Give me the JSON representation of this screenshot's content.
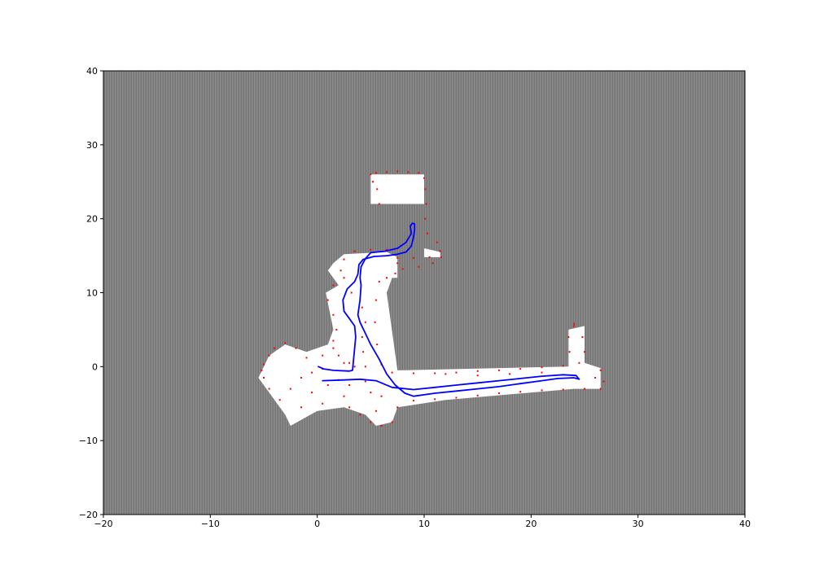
{
  "chart_data": {
    "type": "scatter",
    "title": "",
    "xlabel": "",
    "ylabel": "",
    "xlim": [
      -20,
      40
    ],
    "ylim": [
      -20,
      40
    ],
    "x_ticks": [
      -20,
      -10,
      0,
      10,
      20,
      30,
      40
    ],
    "y_ticks": [
      -20,
      -10,
      0,
      10,
      20,
      30,
      40
    ],
    "x_tick_labels": [
      "−20",
      "−10",
      "0",
      "10",
      "20",
      "30",
      "40"
    ],
    "y_tick_labels": [
      "−20",
      "−10",
      "0",
      "10",
      "20",
      "30",
      "40"
    ],
    "grid": false,
    "legend": "none",
    "colors": {
      "unknown": "#808080",
      "free": "#ffffff",
      "occupied": "#ff0000",
      "trajectory": "#0000ff"
    },
    "free_space_regions": [
      [
        [
          5.0,
          26.0
        ],
        [
          10.0,
          26.0
        ],
        [
          10.0,
          16.0
        ],
        [
          11.5,
          15.5
        ],
        [
          11.5,
          14.8
        ],
        [
          7.5,
          14.8
        ],
        [
          6.5,
          15.5
        ],
        [
          2.5,
          15.2
        ],
        [
          1.5,
          14.0
        ],
        [
          1.0,
          13.0
        ],
        [
          2.0,
          11.0
        ],
        [
          0.8,
          10.0
        ],
        [
          1.5,
          5.0
        ],
        [
          1.0,
          3.0
        ],
        [
          -1.0,
          2.0
        ],
        [
          -3.0,
          3.0
        ],
        [
          -4.5,
          1.5
        ],
        [
          -5.0,
          0.0
        ],
        [
          -5.5,
          -1.5
        ],
        [
          -4.5,
          -3.5
        ],
        [
          -3.0,
          -6.5
        ],
        [
          -2.5,
          -8.0
        ],
        [
          0.0,
          -6.0
        ],
        [
          2.5,
          -5.5
        ],
        [
          4.5,
          -6.5
        ],
        [
          5.5,
          -8.0
        ],
        [
          7.0,
          -7.5
        ],
        [
          7.5,
          -5.5
        ],
        [
          12.0,
          -4.5
        ],
        [
          24.0,
          -3.0
        ],
        [
          26.5,
          -3.0
        ],
        [
          26.5,
          -0.2
        ],
        [
          25.0,
          0.5
        ],
        [
          25.0,
          5.5
        ],
        [
          23.5,
          5.0
        ],
        [
          23.5,
          0.0
        ],
        [
          7.5,
          -0.5
        ],
        [
          6.5,
          10.0
        ],
        [
          7.0,
          12.0
        ],
        [
          7.5,
          12.0
        ],
        [
          7.5,
          14.8
        ],
        [
          10.0,
          14.8
        ],
        [
          10.0,
          22.0
        ],
        [
          5.0,
          22.0
        ],
        [
          5.0,
          26.0
        ]
      ]
    ],
    "series": [
      {
        "points": [
          [
            5.0,
            26.0
          ],
          [
            5.5,
            26.2
          ],
          [
            6.5,
            26.3
          ],
          [
            7.5,
            26.4
          ],
          [
            8.5,
            26.3
          ],
          [
            9.5,
            26.2
          ],
          [
            10.0,
            25.5
          ],
          [
            10.1,
            24.0
          ],
          [
            10.2,
            22.0
          ],
          [
            10.1,
            20.0
          ],
          [
            10.3,
            18.0
          ],
          [
            11.2,
            16.8
          ],
          [
            11.5,
            15.6
          ],
          [
            11.6,
            14.8
          ],
          [
            10.5,
            14.8
          ],
          [
            9.0,
            14.7
          ],
          [
            7.5,
            14.7
          ],
          [
            7.5,
            14.0
          ],
          [
            7.3,
            12.6
          ],
          [
            6.5,
            12.0
          ],
          [
            5.8,
            11.5
          ],
          [
            5.5,
            9.0
          ],
          [
            5.4,
            6.0
          ],
          [
            5.6,
            3.0
          ],
          [
            6.0,
            0.3
          ],
          [
            7.0,
            -0.8
          ],
          [
            9.0,
            -0.9
          ],
          [
            11.0,
            -0.9
          ],
          [
            13.0,
            -0.8
          ],
          [
            15.0,
            -0.6
          ],
          [
            17.0,
            -0.5
          ],
          [
            19.0,
            -0.3
          ],
          [
            21.0,
            -0.1
          ],
          [
            23.0,
            0.1
          ],
          [
            24.5,
            0.5
          ],
          [
            25.0,
            2.0
          ],
          [
            24.8,
            4.0
          ],
          [
            24.0,
            5.8
          ],
          [
            26.5,
            -0.5
          ],
          [
            26.8,
            -2.0
          ],
          [
            26.5,
            -3.0
          ],
          [
            25.0,
            -3.0
          ],
          [
            23.0,
            -3.1
          ],
          [
            21.0,
            -3.2
          ],
          [
            19.0,
            -3.4
          ],
          [
            17.0,
            -3.6
          ],
          [
            15.0,
            -3.9
          ],
          [
            13.0,
            -4.2
          ],
          [
            11.0,
            -4.4
          ],
          [
            9.0,
            -4.6
          ],
          [
            7.5,
            -5.5
          ],
          [
            7.0,
            -7.5
          ],
          [
            6.0,
            -8.0
          ],
          [
            5.0,
            -7.5
          ],
          [
            4.0,
            -6.5
          ],
          [
            3.0,
            -5.5
          ],
          [
            2.5,
            -4.0
          ],
          [
            3.0,
            0.5
          ],
          [
            3.5,
            0.0
          ],
          [
            2.5,
            0.5
          ],
          [
            2.0,
            1.5
          ],
          [
            1.5,
            2.5
          ],
          [
            0.5,
            1.5
          ],
          [
            -1.0,
            1.2
          ],
          [
            -2.0,
            2.5
          ],
          [
            -3.0,
            3.2
          ],
          [
            -4.0,
            2.5
          ],
          [
            -4.5,
            1.5
          ],
          [
            -5.0,
            0.3
          ],
          [
            -5.2,
            -0.5
          ],
          [
            -5.0,
            -1.5
          ],
          [
            -4.5,
            -3.0
          ],
          [
            -3.5,
            -4.5
          ],
          [
            -1.5,
            -5.5
          ],
          [
            0.5,
            -5.0
          ],
          [
            1.5,
            3.5
          ],
          [
            1.8,
            5.0
          ],
          [
            1.5,
            7.0
          ],
          [
            1.0,
            9.0
          ],
          [
            1.5,
            11.0
          ],
          [
            2.2,
            13.0
          ],
          [
            2.5,
            14.5
          ],
          [
            3.5,
            15.6
          ],
          [
            5.0,
            15.8
          ],
          [
            6.5,
            15.8
          ],
          [
            2.5,
            12.0
          ],
          [
            3.2,
            10.0
          ],
          [
            4.2,
            8.0
          ],
          [
            4.5,
            6.0
          ],
          [
            4.2,
            4.0
          ],
          [
            4.3,
            2.0
          ],
          [
            4.5,
            0.0
          ],
          [
            4.5,
            -2.0
          ],
          [
            5.0,
            -3.5
          ],
          [
            6.0,
            -4.0
          ],
          [
            5.8,
            22.0
          ],
          [
            5.6,
            24.0
          ],
          [
            5.2,
            25.0
          ],
          [
            0.5,
            -0.3
          ],
          [
            -0.5,
            -0.8
          ],
          [
            -1.5,
            -1.5
          ],
          [
            -2.5,
            -3.0
          ],
          [
            -0.5,
            -3.5
          ],
          [
            1.0,
            -2.5
          ],
          [
            2.0,
            -1.8
          ],
          [
            3.0,
            -2.5
          ],
          [
            5.5,
            -6.0
          ],
          [
            24.0,
            5.5
          ],
          [
            23.5,
            4.0
          ],
          [
            23.6,
            2.0
          ],
          [
            26.0,
            -1.5
          ],
          [
            12.0,
            -1.0
          ],
          [
            15.0,
            -1.2
          ],
          [
            18.0,
            -1.0
          ],
          [
            21.0,
            -0.8
          ],
          [
            8.0,
            13.2
          ],
          [
            9.5,
            13.5
          ],
          [
            10.8,
            14.0
          ]
        ]
      },
      {
        "points": [
          [
            0.1,
            0.0
          ],
          [
            0.6,
            -0.3
          ],
          [
            1.5,
            -0.5
          ],
          [
            3.0,
            -0.6
          ],
          [
            3.3,
            -0.5
          ],
          [
            3.4,
            1.0
          ],
          [
            3.6,
            4.0
          ],
          [
            3.5,
            5.5
          ],
          [
            3.0,
            6.5
          ],
          [
            2.5,
            7.5
          ],
          [
            2.4,
            9.0
          ],
          [
            2.8,
            10.5
          ],
          [
            3.5,
            11.5
          ],
          [
            3.8,
            12.5
          ],
          [
            3.9,
            13.8
          ],
          [
            4.3,
            14.5
          ],
          [
            5.3,
            14.9
          ],
          [
            6.5,
            15.0
          ],
          [
            7.5,
            15.2
          ],
          [
            8.3,
            15.5
          ],
          [
            8.8,
            16.3
          ],
          [
            9.0,
            17.5
          ],
          [
            9.1,
            18.5
          ],
          [
            9.1,
            19.3
          ],
          [
            8.9,
            19.4
          ],
          [
            8.7,
            19.0
          ],
          [
            8.8,
            18.0
          ],
          [
            8.3,
            16.8
          ],
          [
            7.5,
            16.0
          ],
          [
            6.3,
            15.6
          ],
          [
            5.0,
            15.4
          ],
          [
            4.5,
            14.6
          ],
          [
            4.1,
            13.5
          ],
          [
            4.0,
            12.0
          ],
          [
            4.1,
            11.0
          ],
          [
            4.0,
            9.0
          ],
          [
            3.8,
            7.0
          ],
          [
            4.0,
            6.0
          ],
          [
            4.5,
            4.5
          ],
          [
            5.0,
            3.0
          ],
          [
            5.8,
            1.0
          ],
          [
            6.5,
            -1.0
          ],
          [
            7.3,
            -2.5
          ],
          [
            8.2,
            -3.6
          ],
          [
            9.0,
            -4.0
          ],
          [
            11.0,
            -3.6
          ],
          [
            13.0,
            -3.3
          ],
          [
            15.0,
            -3.0
          ],
          [
            17.0,
            -2.7
          ],
          [
            19.0,
            -2.3
          ],
          [
            21.0,
            -1.9
          ],
          [
            22.5,
            -1.6
          ],
          [
            24.0,
            -1.5
          ],
          [
            24.5,
            -1.7
          ],
          [
            24.2,
            -1.2
          ],
          [
            23.0,
            -1.1
          ],
          [
            21.0,
            -1.3
          ],
          [
            19.0,
            -1.6
          ],
          [
            17.0,
            -1.9
          ],
          [
            15.0,
            -2.2
          ],
          [
            13.0,
            -2.5
          ],
          [
            11.0,
            -2.8
          ],
          [
            9.0,
            -3.1
          ],
          [
            7.0,
            -2.8
          ],
          [
            5.5,
            -1.9
          ],
          [
            4.0,
            -1.7
          ],
          [
            2.5,
            -1.8
          ],
          [
            0.5,
            -1.9
          ]
        ]
      }
    ]
  }
}
